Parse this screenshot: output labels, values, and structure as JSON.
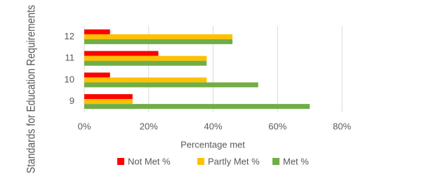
{
  "chart_data": {
    "type": "hbar",
    "x_label": "Percentage met",
    "y_label": "Standards for Education Requirements",
    "categories": [
      "12",
      "11",
      "10",
      "9"
    ],
    "series": [
      {
        "name": "Not Met %",
        "color": "#ff0000",
        "values": [
          8,
          23,
          8,
          15
        ]
      },
      {
        "name": "Partly Met %",
        "color": "#ffc000",
        "values": [
          46,
          38,
          38,
          15
        ]
      },
      {
        "name": "Met %",
        "color": "#70ad47",
        "values": [
          46,
          38,
          54,
          70
        ]
      }
    ],
    "xlim": [
      0,
      80
    ],
    "xticks": [
      {
        "value": 0,
        "label": "0%"
      },
      {
        "value": 20,
        "label": "20%"
      },
      {
        "value": 40,
        "label": "40%"
      },
      {
        "value": 60,
        "label": "60%"
      },
      {
        "value": 80,
        "label": "80%"
      }
    ],
    "grid": true,
    "legend": "bottom"
  }
}
